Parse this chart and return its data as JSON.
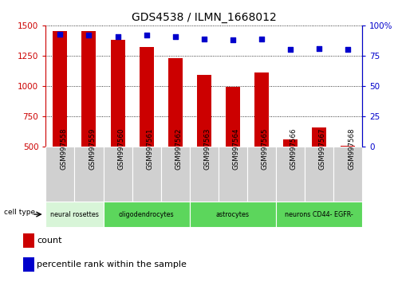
{
  "title": "GDS4538 / ILMN_1668012",
  "samples": [
    "GSM997558",
    "GSM997559",
    "GSM997560",
    "GSM997561",
    "GSM997562",
    "GSM997563",
    "GSM997564",
    "GSM997565",
    "GSM997566",
    "GSM997567",
    "GSM997568"
  ],
  "counts": [
    1455,
    1450,
    1380,
    1320,
    1230,
    1090,
    990,
    1110,
    560,
    655,
    510
  ],
  "percentile_ranks": [
    93,
    92,
    91,
    92,
    91,
    89,
    88,
    89,
    80,
    81,
    80
  ],
  "ylim_left": [
    500,
    1500
  ],
  "ylim_right": [
    0,
    100
  ],
  "yticks_left": [
    500,
    750,
    1000,
    1250,
    1500
  ],
  "yticks_right": [
    0,
    25,
    50,
    75,
    100
  ],
  "bar_color": "#cc0000",
  "dot_color": "#0000cc",
  "bar_width": 0.5,
  "left_axis_color": "#cc0000",
  "right_axis_color": "#0000cc",
  "legend_count_color": "#cc0000",
  "legend_pct_color": "#0000cc",
  "cell_type_groups": [
    {
      "label": "neural rosettes",
      "start": 0,
      "end": 1,
      "color": "#d8f5d8"
    },
    {
      "label": "oligodendrocytes",
      "start": 2,
      "end": 4,
      "color": "#5cd65c"
    },
    {
      "label": "astrocytes",
      "start": 5,
      "end": 7,
      "color": "#5cd65c"
    },
    {
      "label": "neurons CD44- EGFR-",
      "start": 8,
      "end": 10,
      "color": "#5cd65c"
    }
  ],
  "sample_box_color": "#d0d0d0",
  "cell_type_border_color": "#888888"
}
